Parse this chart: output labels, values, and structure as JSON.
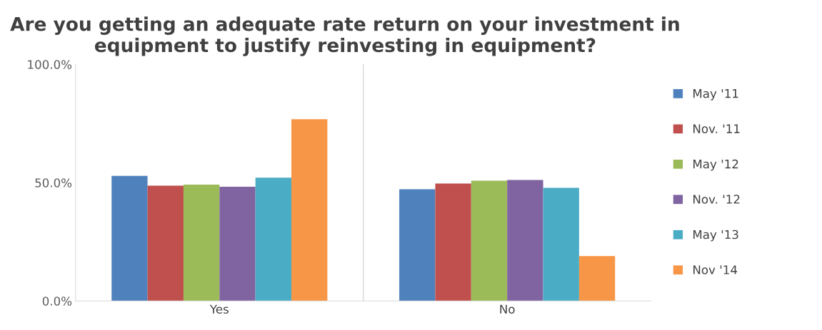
{
  "chart_data": {
    "type": "bar",
    "title": "Are you getting an adequate rate return on your investment in equipment to justify reinvesting in equipment?",
    "categories": [
      "Yes",
      "No"
    ],
    "series": [
      {
        "name": "May '11",
        "color": "#4f81bd",
        "values": [
          52.9,
          47.2
        ]
      },
      {
        "name": "Nov. '11",
        "color": "#c0504d",
        "values": [
          48.7,
          49.6
        ]
      },
      {
        "name": "May '12",
        "color": "#9bbb59",
        "values": [
          49.2,
          50.8
        ]
      },
      {
        "name": "Nov. '12",
        "color": "#8064a2",
        "values": [
          48.3,
          51.1
        ]
      },
      {
        "name": "May '13",
        "color": "#4bacc6",
        "values": [
          52.1,
          47.8
        ]
      },
      {
        "name": "Nov '14",
        "color": "#f79646",
        "values": [
          76.8,
          19.0
        ]
      }
    ],
    "ylim": [
      0,
      100
    ],
    "yticks": [
      {
        "value": 0,
        "label": "0.0%"
      },
      {
        "value": 50,
        "label": "50.0%"
      },
      {
        "value": 100,
        "label": "100.0%"
      }
    ],
    "grid": "x",
    "legend": "right"
  }
}
